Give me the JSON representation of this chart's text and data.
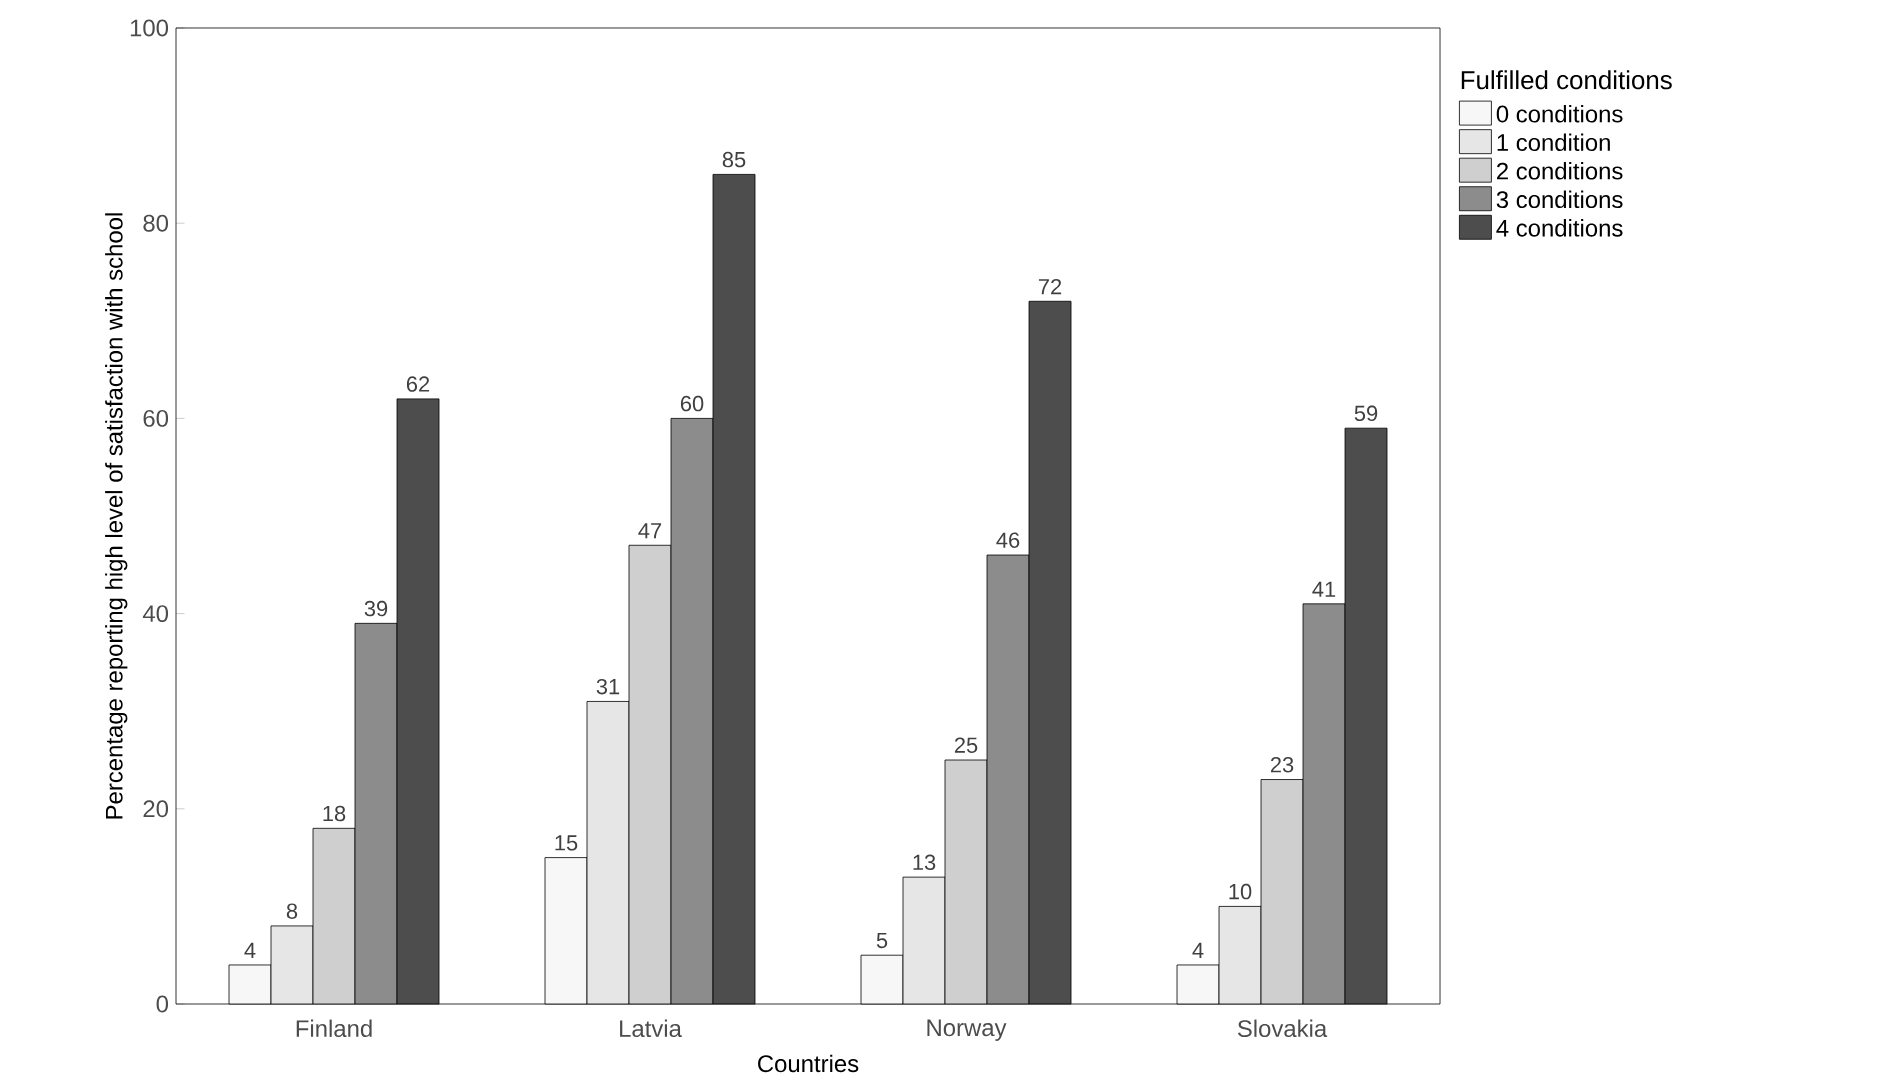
{
  "chart_data": {
    "type": "bar",
    "xlabel": "Countries",
    "ylabel": "Percentage reporting high level of satisfaction with school",
    "legend_title": "Fulfilled conditions",
    "categories": [
      "Finland",
      "Latvia",
      "Norway",
      "Slovakia"
    ],
    "series": [
      {
        "name": "0 conditions",
        "color": "#f7f7f7",
        "values": [
          4,
          15,
          5,
          4
        ]
      },
      {
        "name": "1 condition",
        "color": "#e6e6e6",
        "values": [
          8,
          31,
          13,
          10
        ]
      },
      {
        "name": "2 conditions",
        "color": "#cfcfcf",
        "values": [
          18,
          47,
          25,
          23
        ]
      },
      {
        "name": "3 conditions",
        "color": "#8c8c8c",
        "values": [
          39,
          60,
          46,
          41
        ]
      },
      {
        "name": "4 conditions",
        "color": "#4d4d4d",
        "values": [
          62,
          85,
          72,
          59
        ]
      }
    ],
    "ylim": [
      0,
      100
    ],
    "yticks": [
      0,
      20,
      40,
      60,
      80,
      100
    ],
    "data_labels": true,
    "legend": "top right",
    "grid": false
  }
}
